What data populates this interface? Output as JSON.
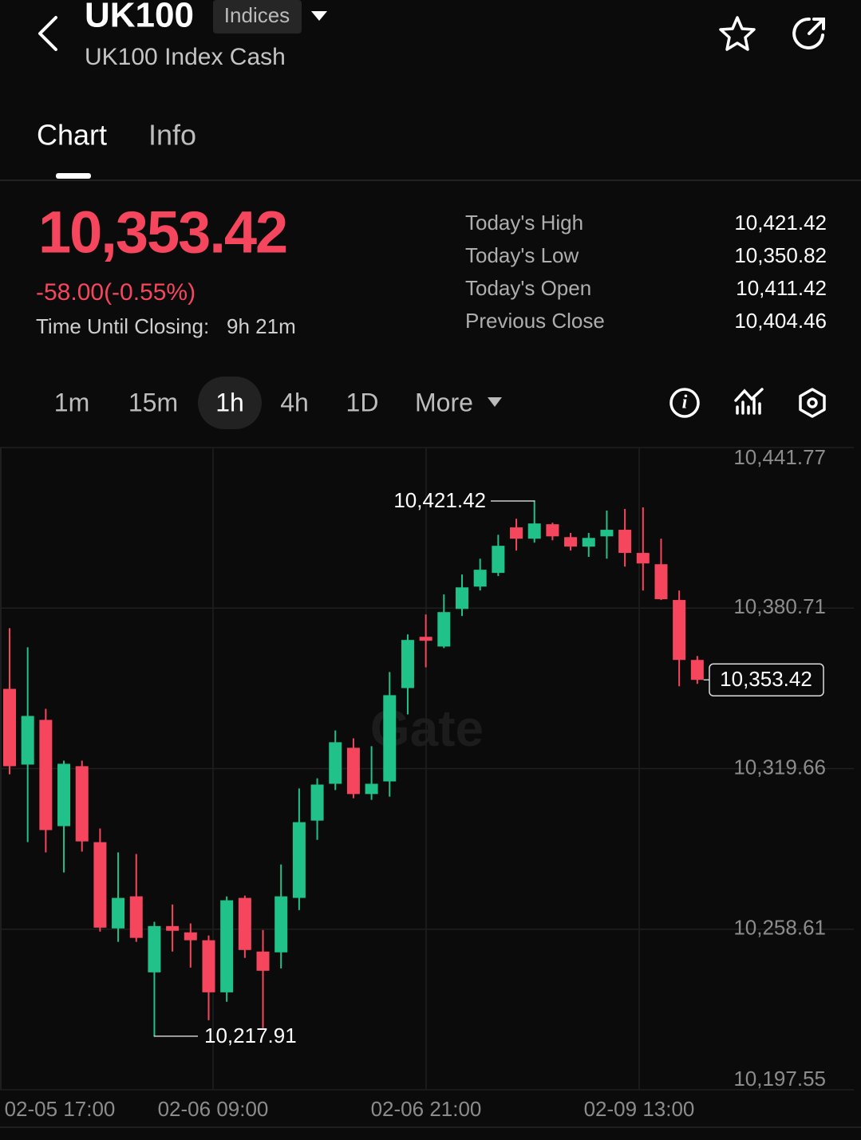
{
  "header": {
    "symbol": "UK100",
    "badge": "Indices",
    "subtitle": "UK100 Index Cash"
  },
  "tabs": [
    "Chart",
    "Info"
  ],
  "active_tab": "Chart",
  "quote": {
    "price": "10,353.42",
    "change": "-58.00(-0.55%)",
    "closing_label": "Time Until Closing:",
    "closing_value": "9h 21m"
  },
  "stats": [
    {
      "label": "Today's High",
      "value": "10,421.42"
    },
    {
      "label": "Today's Low",
      "value": "10,350.82"
    },
    {
      "label": "Today's Open",
      "value": "10,411.42"
    },
    {
      "label": "Previous Close",
      "value": "10,404.46"
    }
  ],
  "timeframes": [
    "1m",
    "15m",
    "1h",
    "4h",
    "1D",
    "More"
  ],
  "active_timeframe": "1h",
  "chart_data": {
    "type": "candlestick",
    "watermark": "Gate",
    "up_color": "#20c28a",
    "down_color": "#f6465d",
    "open": [
      10350.0,
      10321.2,
      10338.2,
      10297.8,
      10320.6,
      10291.7,
      10258.9,
      10271.1,
      10242.2,
      10259.8,
      10257.4,
      10254.4,
      10234.6,
      10270.5,
      10250.1,
      10249.8,
      10270.5,
      10299.9,
      10313.9,
      10327.6,
      10310.0,
      10314.8,
      10350.3,
      10369.8,
      10366.1,
      10380.4,
      10388.9,
      10394.1,
      10411.4,
      10407.1,
      10412.6,
      10407.7,
      10404.1,
      10408.0,
      10410.5,
      10401.7,
      10397.4,
      10383.8,
      10361.0
    ],
    "high": [
      10373.1,
      10365.8,
      10342.4,
      10322.7,
      10322.7,
      10296.9,
      10287.8,
      10287.2,
      10261.4,
      10268.0,
      10260.8,
      10256.2,
      10271.1,
      10271.4,
      10258.3,
      10283.2,
      10312.1,
      10316.0,
      10334.2,
      10331.2,
      10328.2,
      10356.4,
      10370.7,
      10378.3,
      10385.9,
      10393.5,
      10399.5,
      10408.6,
      10414.7,
      10421.42,
      10413.2,
      10409.3,
      10409.3,
      10417.8,
      10418.4,
      10419.0,
      10407.1,
      10387.4,
      10362.5
    ],
    "low": [
      10317.5,
      10291.7,
      10287.8,
      10280.2,
      10288.1,
      10257.7,
      10253.8,
      10253.8,
      10217.91,
      10250.1,
      10244.0,
      10224.0,
      10231.0,
      10247.7,
      10221.0,
      10243.7,
      10265.9,
      10292.6,
      10311.5,
      10308.4,
      10307.8,
      10309.0,
      10340.3,
      10358.2,
      10365.5,
      10377.7,
      10387.4,
      10392.9,
      10402.6,
      10405.6,
      10406.5,
      10402.6,
      10400.2,
      10399.5,
      10396.5,
      10387.4,
      10383.8,
      10351.0,
      10351.9
    ],
    "close": [
      10320.6,
      10339.7,
      10296.3,
      10321.5,
      10292.0,
      10259.2,
      10270.5,
      10255.3,
      10259.8,
      10258.0,
      10254.4,
      10234.6,
      10269.6,
      10250.7,
      10242.8,
      10271.1,
      10299.3,
      10313.6,
      10329.7,
      10310.0,
      10313.9,
      10347.6,
      10368.6,
      10368.3,
      10379.2,
      10388.6,
      10395.3,
      10404.4,
      10407.1,
      10412.9,
      10408.0,
      10404.1,
      10407.4,
      10410.5,
      10401.7,
      10397.7,
      10384.1,
      10361.0,
      10353.42
    ],
    "ylim": [
      10197.55,
      10441.77
    ],
    "yticks": [
      {
        "value": 10441.77,
        "label": "10,441.77"
      },
      {
        "value": 10380.71,
        "label": "10,380.71"
      },
      {
        "value": 10319.66,
        "label": "10,319.66"
      },
      {
        "value": 10258.61,
        "label": "10,258.61"
      },
      {
        "value": 10197.55,
        "label": "10,197.55"
      }
    ],
    "xtick_labels": [
      "02-05 17:00",
      "02-06 09:00",
      "02-06 21:00",
      "02-09 13:00"
    ],
    "high_annotation": {
      "value": 10421.42,
      "label": "10,421.42"
    },
    "low_annotation": {
      "value": 10217.91,
      "label": "10,217.91"
    },
    "last_annotation": {
      "value": 10353.42,
      "label": "10,353.42"
    },
    "grid": true
  }
}
